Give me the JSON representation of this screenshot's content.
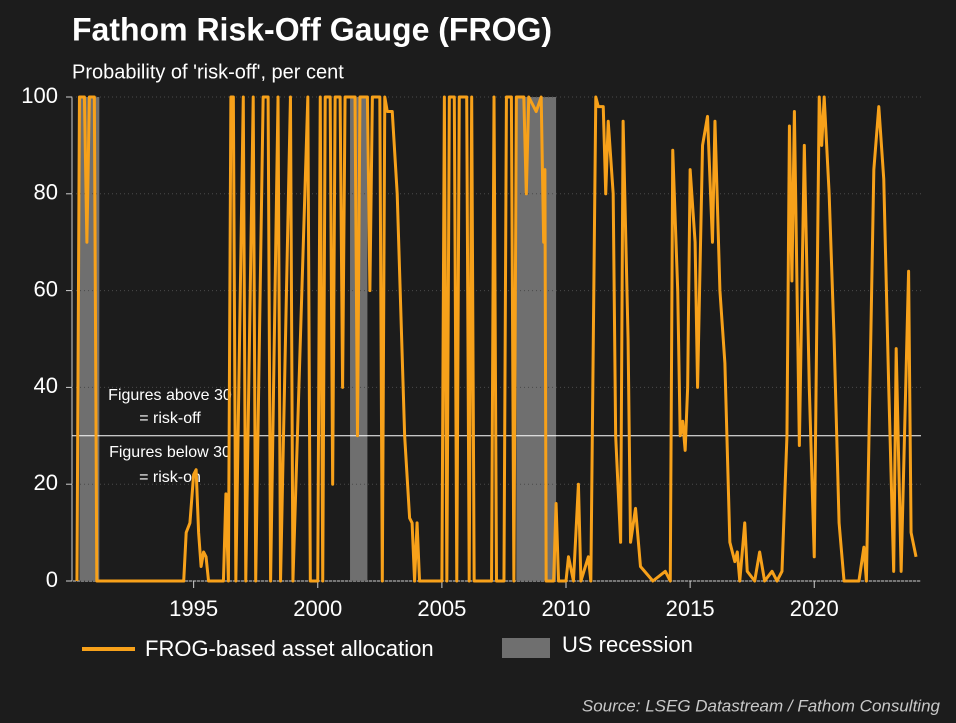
{
  "chart_data": {
    "type": "line",
    "title": "Fathom Risk-Off Gauge (FROG)",
    "subtitle": "Probability of 'risk-off', per cent",
    "source": "Source: LSEG Datastream / Fathom Consulting",
    "xlim": [
      1990.1,
      2024.3
    ],
    "xticks": [
      1995,
      2000,
      2005,
      2010,
      2015,
      2020
    ],
    "ylim": [
      0,
      100
    ],
    "yticks": [
      0,
      20,
      40,
      60,
      80,
      100
    ],
    "grid": true,
    "threshold": 30,
    "annotations": [
      {
        "lines": [
          "Figures above 30",
          "= risk-off"
        ]
      },
      {
        "lines": [
          "Figures below 30",
          "= risk-on"
        ]
      }
    ],
    "recessions": {
      "name": "US recession",
      "color": "#6f6f6f",
      "spans": [
        [
          1990.4,
          1991.2
        ],
        [
          2001.3,
          2002.0
        ],
        [
          2008.0,
          2009.6
        ]
      ]
    },
    "x": [
      1990.3,
      1990.4,
      1990.6,
      1990.7,
      1990.8,
      1991.0,
      1991.1,
      1994.6,
      1994.7,
      1994.85,
      1995.0,
      1995.1,
      1995.2,
      1995.3,
      1995.4,
      1995.5,
      1995.6,
      1996.2,
      1996.3,
      1996.4,
      1996.5,
      1996.6,
      1996.7,
      1997.0,
      1997.1,
      1997.4,
      1997.5,
      1997.8,
      1998.0,
      1998.1,
      1998.4,
      1998.5,
      1998.9,
      1999.0,
      1999.6,
      1999.7,
      2000.0,
      2000.1,
      2000.2,
      2000.3,
      2000.5,
      2000.6,
      2000.7,
      2000.9,
      2001.0,
      2001.1,
      2001.5,
      2001.6,
      2001.7,
      2002.0,
      2002.1,
      2002.2,
      2002.5,
      2002.6,
      2002.7,
      2002.8,
      2003.0,
      2003.2,
      2003.5,
      2003.7,
      2003.8,
      2003.9,
      2004.0,
      2004.1,
      2005.0,
      2005.1,
      2005.2,
      2005.3,
      2005.5,
      2005.6,
      2005.7,
      2006.0,
      2006.1,
      2006.2,
      2006.3,
      2007.0,
      2007.1,
      2007.2,
      2007.5,
      2007.6,
      2007.8,
      2007.9,
      2008.0,
      2008.3,
      2008.4,
      2008.5,
      2008.8,
      2009.0,
      2009.1,
      2009.15,
      2009.2,
      2009.5,
      2009.6,
      2009.7,
      2010.0,
      2010.1,
      2010.3,
      2010.5,
      2010.6,
      2010.9,
      2011.0,
      2011.2,
      2011.3,
      2011.5,
      2011.6,
      2011.7,
      2011.9,
      2012.0,
      2012.2,
      2012.3,
      2012.5,
      2012.6,
      2012.8,
      2013.0,
      2013.5,
      2014.0,
      2014.2,
      2014.3,
      2014.5,
      2014.6,
      2014.7,
      2014.8,
      2014.9,
      2015.0,
      2015.2,
      2015.3,
      2015.5,
      2015.7,
      2015.9,
      2016.0,
      2016.2,
      2016.4,
      2016.6,
      2016.8,
      2016.9,
      2017.0,
      2017.2,
      2017.3,
      2017.6,
      2017.8,
      2018.0,
      2018.3,
      2018.5,
      2018.7,
      2018.9,
      2019.0,
      2019.1,
      2019.2,
      2019.4,
      2019.6,
      2019.8,
      2020.0,
      2020.2,
      2020.3,
      2020.4,
      2020.6,
      2020.8,
      2021.0,
      2021.2,
      2021.8,
      2022.0,
      2022.1,
      2022.4,
      2022.6,
      2022.8,
      2023.0,
      2023.2,
      2023.3,
      2023.5,
      2023.8,
      2023.9,
      2024.1
    ],
    "series": [
      {
        "name": "FROG-based asset allocation",
        "color": "#f7a11a",
        "values": [
          0,
          100,
          100,
          70,
          100,
          100,
          0,
          0,
          10,
          12,
          22,
          23,
          10,
          3,
          6,
          5,
          0,
          0,
          18,
          0,
          100,
          100,
          0,
          100,
          0,
          100,
          0,
          100,
          100,
          0,
          100,
          0,
          100,
          0,
          100,
          0,
          0,
          100,
          0,
          100,
          100,
          20,
          100,
          100,
          40,
          100,
          100,
          30,
          100,
          100,
          60,
          100,
          100,
          0,
          100,
          97,
          97,
          80,
          30,
          13,
          12,
          0,
          12,
          0,
          0,
          100,
          0,
          100,
          100,
          0,
          100,
          100,
          0,
          100,
          0,
          0,
          100,
          0,
          0,
          100,
          100,
          0,
          100,
          100,
          80,
          100,
          97,
          100,
          70,
          85,
          0,
          0,
          16,
          0,
          0,
          5,
          0,
          20,
          0,
          5,
          0,
          100,
          98,
          98,
          80,
          95,
          80,
          30,
          8,
          95,
          50,
          8,
          15,
          3,
          0,
          2,
          0,
          89,
          60,
          30,
          33,
          27,
          40,
          85,
          70,
          40,
          90,
          96,
          70,
          95,
          60,
          45,
          8,
          4,
          6,
          0,
          12,
          2,
          0,
          6,
          0,
          2,
          0,
          2,
          30,
          94,
          62,
          97,
          28,
          90,
          40,
          5,
          100,
          90,
          100,
          80,
          50,
          12,
          0,
          0,
          7,
          0,
          85,
          98,
          83,
          40,
          2,
          48,
          2,
          64,
          10,
          5
        ]
      }
    ]
  }
}
